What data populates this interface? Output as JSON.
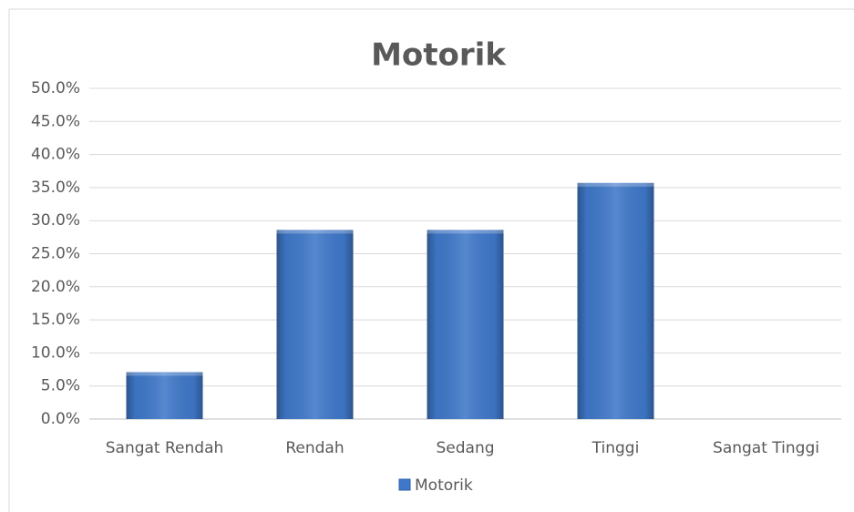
{
  "chart_data": {
    "type": "bar",
    "title": "Motorik",
    "categories": [
      "Sangat Rendah",
      "Rendah",
      "Sedang",
      "Tinggi",
      "Sangat Tinggi"
    ],
    "series": [
      {
        "name": "Motorik",
        "color": "#3f78c9",
        "values": [
          7.1,
          28.6,
          28.6,
          35.7,
          0
        ]
      }
    ],
    "ylim": [
      0,
      50
    ],
    "yticks": [
      {
        "value": 0,
        "label": "0.0%"
      },
      {
        "value": 5,
        "label": "5.0%"
      },
      {
        "value": 10,
        "label": "10.0%"
      },
      {
        "value": 15,
        "label": "15.0%"
      },
      {
        "value": 20,
        "label": "20.0%"
      },
      {
        "value": 25,
        "label": "25.0%"
      },
      {
        "value": 30,
        "label": "30.0%"
      },
      {
        "value": 35,
        "label": "35.0%"
      },
      {
        "value": 40,
        "label": "40.0%"
      },
      {
        "value": 45,
        "label": "45.0%"
      },
      {
        "value": 50,
        "label": "50.0%"
      }
    ],
    "grid": true,
    "legend": "bottom"
  }
}
